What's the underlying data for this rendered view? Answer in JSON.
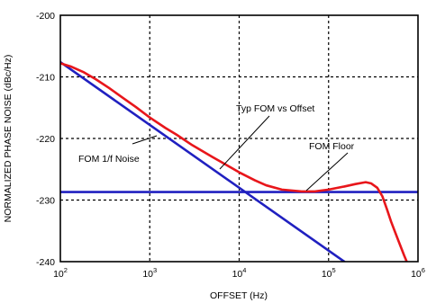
{
  "chart_data": {
    "type": "line",
    "title": "",
    "xlabel": "OFFSET (Hz)",
    "ylabel": "NORMALIZED PHASE NOISE (dBc/Hz)",
    "xscale": "log",
    "xlim": [
      100,
      1000000
    ],
    "ylim": [
      -240,
      -200
    ],
    "x_ticks": [
      {
        "value": 100,
        "base": "10",
        "exp": "2"
      },
      {
        "value": 1000,
        "base": "10",
        "exp": "3"
      },
      {
        "value": 10000,
        "base": "10",
        "exp": "4"
      },
      {
        "value": 100000,
        "base": "10",
        "exp": "5"
      },
      {
        "value": 1000000,
        "base": "10",
        "exp": "6"
      }
    ],
    "y_ticks": [
      {
        "value": -200,
        "label": "-200"
      },
      {
        "value": -210,
        "label": "-210"
      },
      {
        "value": -220,
        "label": "-220"
      },
      {
        "value": -230,
        "label": "-230"
      },
      {
        "value": -240,
        "label": "-240"
      }
    ],
    "grid": "dashed",
    "series": [
      {
        "name": "Typ FOM vs Offset",
        "color": "#e8161b",
        "x": [
          100,
          130,
          180,
          250,
          350,
          500,
          700,
          1000,
          1500,
          2000,
          3000,
          5000,
          7000,
          10000,
          15000,
          20000,
          30000,
          50000,
          70000,
          100000,
          150000,
          200000,
          260000,
          300000,
          350000,
          400000,
          450000,
          500000,
          600000,
          700000,
          800000,
          1000000
        ],
        "y": [
          -207.8,
          -208.3,
          -209.2,
          -210.4,
          -211.8,
          -213.4,
          -214.9,
          -216.6,
          -218.3,
          -219.4,
          -221.1,
          -223.0,
          -224.2,
          -225.5,
          -226.8,
          -227.6,
          -228.3,
          -228.6,
          -228.6,
          -228.3,
          -227.8,
          -227.4,
          -227.1,
          -227.3,
          -228.0,
          -229.4,
          -231.5,
          -233.5,
          -236.5,
          -239.0,
          -241.0,
          -244.0
        ]
      },
      {
        "name": "FOM 1/f Noise",
        "color": "#2020c0",
        "x": [
          100,
          150000
        ],
        "y": [
          -207.6,
          -240.0
        ]
      },
      {
        "name": "FOM Floor",
        "color": "#2020c0",
        "x": [
          100,
          1000000
        ],
        "y": [
          -228.7,
          -228.7
        ]
      }
    ],
    "annotations": [
      {
        "text": "Typ FOM vs Offset",
        "series": "Typ FOM vs Offset"
      },
      {
        "text": "FOM 1/f Noise",
        "series": "FOM 1/f Noise"
      },
      {
        "text": "FOM Floor",
        "series": "FOM Floor"
      }
    ]
  }
}
